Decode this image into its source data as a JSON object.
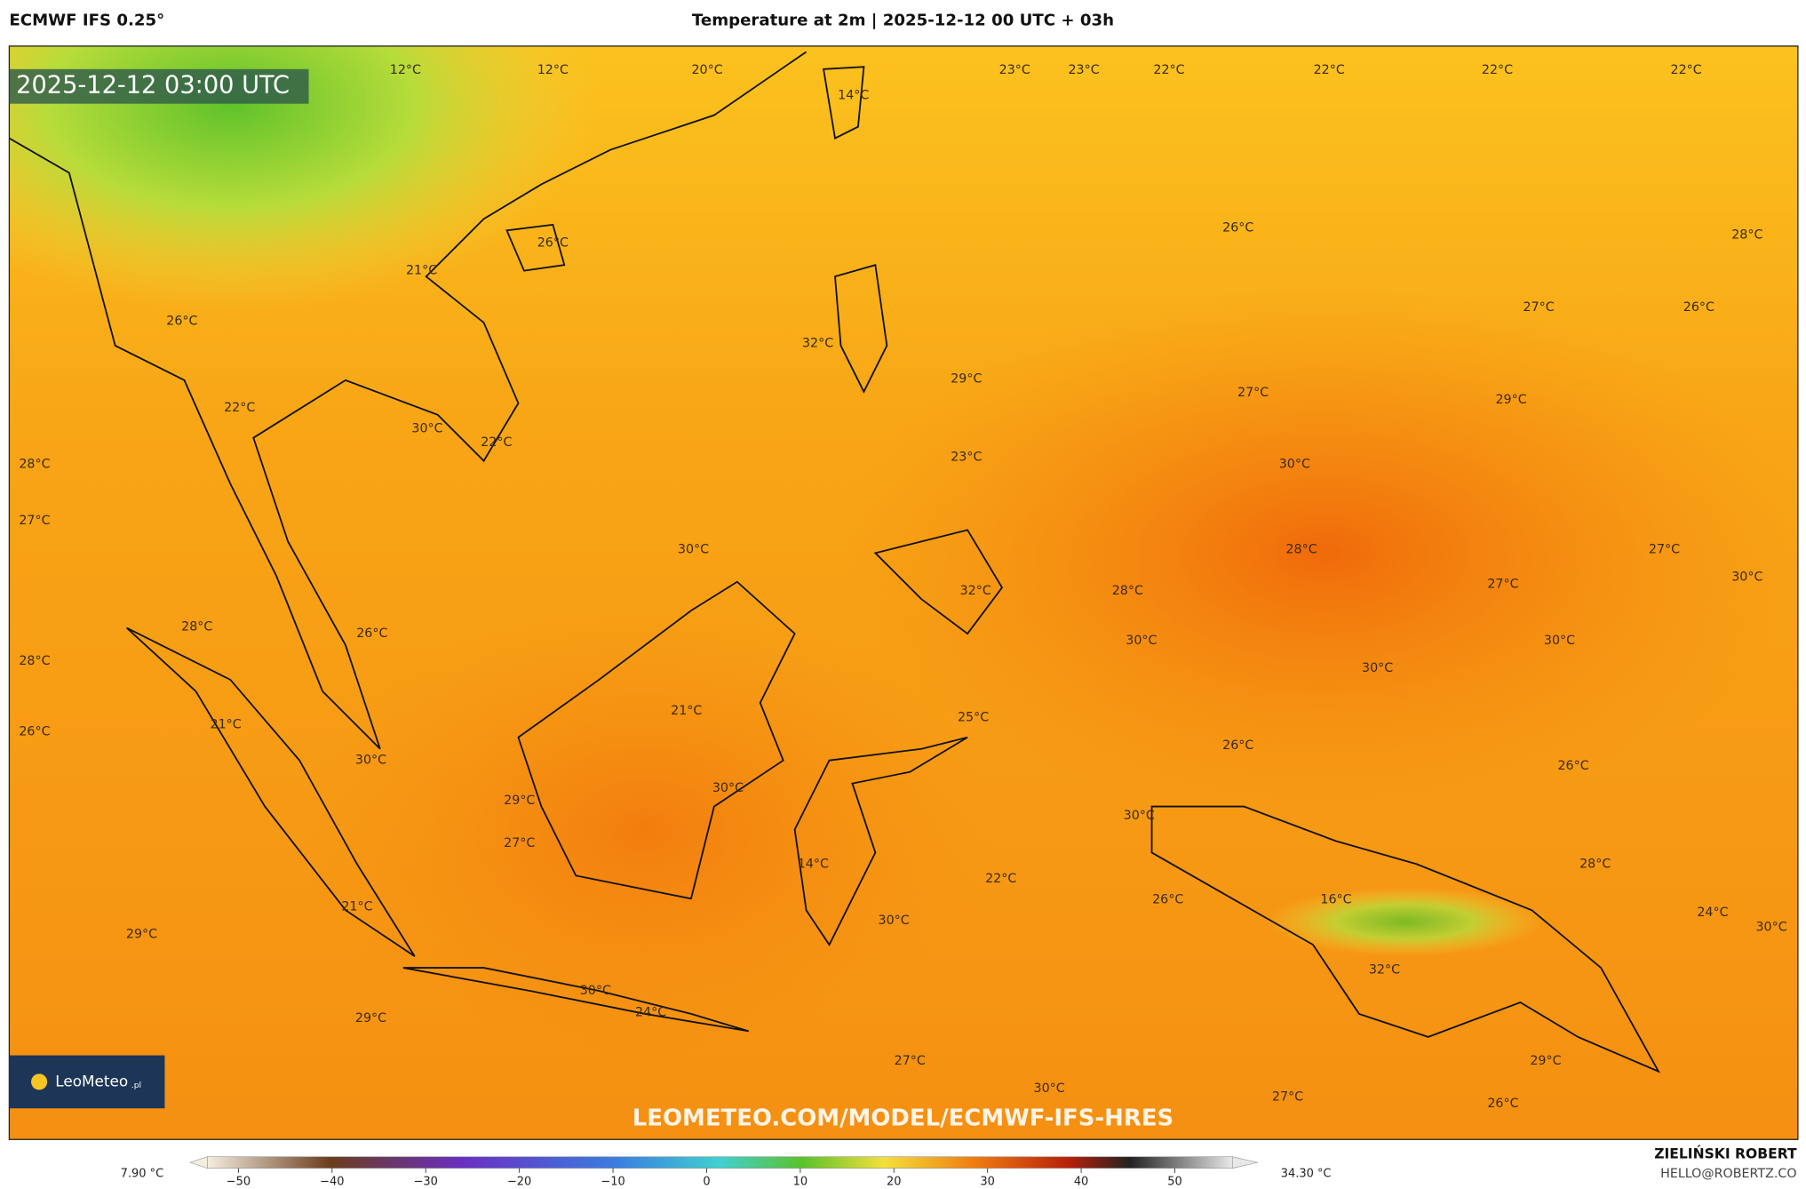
{
  "header": {
    "model": "ECMWF IFS 0.25°",
    "title": "Temperature at 2m | 2025-12-12 00 UTC + 03h"
  },
  "map": {
    "timestamp": "2025-12-12 03:00 UTC",
    "logo": "LeoMeteo",
    "logo_suffix": ".pl",
    "watermark": "LEOMETEO.COM/MODEL/ECMWF-IFS-HRES",
    "labels": [
      "12°C",
      "12°C",
      "20°C",
      "23°C",
      "23°C",
      "22°C",
      "22°C",
      "22°C",
      "22°C",
      "14°C",
      "26°C",
      "21°C",
      "26°C",
      "28°C",
      "26°C",
      "27°C",
      "26°C",
      "32°C",
      "29°C",
      "27°C",
      "29°C",
      "22°C",
      "30°C",
      "22°C",
      "23°C",
      "28°C",
      "30°C",
      "27°C",
      "30°C",
      "28°C",
      "27°C",
      "32°C",
      "28°C",
      "27°C",
      "30°C",
      "28°C",
      "26°C",
      "30°C",
      "30°C",
      "28°C",
      "30°C",
      "21°C",
      "25°C",
      "21°C",
      "26°C",
      "30°C",
      "26°C",
      "26°C",
      "30°C",
      "29°C",
      "30°C",
      "27°C",
      "14°C",
      "22°C",
      "28°C",
      "26°C",
      "16°C",
      "21°C",
      "24°C",
      "30°C",
      "30°C",
      "29°C",
      "32°C",
      "30°C",
      "24°C",
      "29°C",
      "27°C",
      "29°C",
      "30°C",
      "27°C",
      "26°C"
    ]
  },
  "colorbar": {
    "min": "7.90 °C",
    "max": "34.30 °C",
    "ticks": [
      "−50",
      "−40",
      "−30",
      "−20",
      "−10",
      "0",
      "10",
      "20",
      "30",
      "40",
      "50"
    ]
  },
  "footer": {
    "author": "ZIELIŃSKI ROBERT",
    "email": "HELLO@ROBERTZ.CO"
  }
}
